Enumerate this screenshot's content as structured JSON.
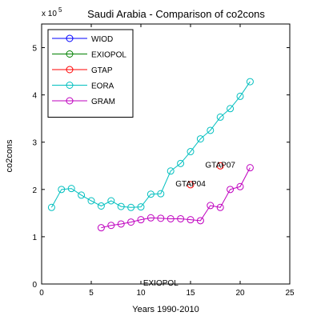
{
  "chart_data": {
    "type": "line",
    "title": "Saudi Arabia - Comparison of co2cons",
    "xlabel": "Years 1990-2010",
    "ylabel": "co2cons",
    "y_multiplier_base": "x 10",
    "y_multiplier_exp": "5",
    "xlim": [
      0,
      25
    ],
    "ylim": [
      0,
      5.5
    ],
    "x_ticks": [
      0,
      5,
      10,
      15,
      20,
      25
    ],
    "y_ticks": [
      0,
      1,
      2,
      3,
      4,
      5
    ],
    "grid": false,
    "legend_position": "top-left",
    "series": [
      {
        "name": "WIOD",
        "color": "#0000ff",
        "x": [],
        "y": []
      },
      {
        "name": "EXIOPOL",
        "color": "#008000",
        "x": [],
        "y": []
      },
      {
        "name": "GTAP",
        "color": "#ff0000",
        "x": [
          15,
          18
        ],
        "y": [
          2.1,
          2.5
        ]
      },
      {
        "name": "EORA",
        "color": "#00bfbf",
        "x": [
          1,
          2,
          3,
          4,
          5,
          6,
          7,
          8,
          9,
          10,
          11,
          12,
          13,
          14,
          15,
          16,
          17,
          18,
          19,
          20,
          21
        ],
        "y": [
          1.62,
          2.0,
          2.02,
          1.88,
          1.76,
          1.65,
          1.76,
          1.64,
          1.62,
          1.63,
          1.9,
          1.91,
          2.39,
          2.55,
          2.8,
          3.07,
          3.25,
          3.53,
          3.71,
          3.97,
          4.28
        ]
      },
      {
        "name": "GRAM",
        "color": "#bf00bf",
        "x": [
          6,
          7,
          8,
          9,
          10,
          11,
          12,
          13,
          14,
          15,
          16,
          17,
          18,
          19,
          20,
          21
        ],
        "y": [
          1.19,
          1.24,
          1.27,
          1.31,
          1.36,
          1.4,
          1.39,
          1.38,
          1.38,
          1.36,
          1.34,
          1.66,
          1.62,
          2.0,
          2.06,
          2.46
        ]
      }
    ],
    "annotations": [
      {
        "text": "GTAP07",
        "x": 18,
        "y": 2.5
      },
      {
        "text": "GTAP04",
        "x": 15,
        "y": 2.1
      },
      {
        "text": "EXIOPOL",
        "x": 12,
        "y": 0
      }
    ]
  }
}
